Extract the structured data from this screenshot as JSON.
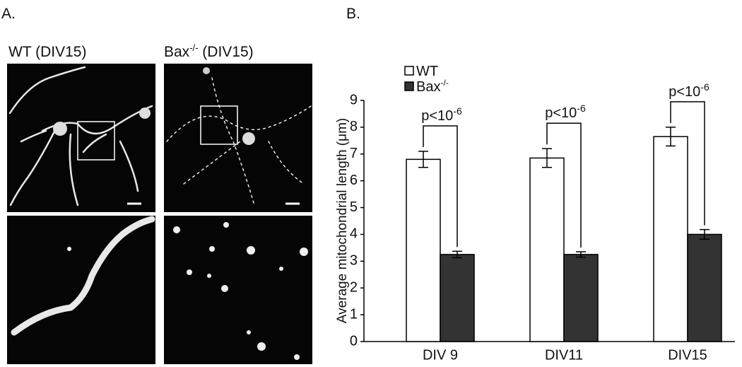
{
  "panels": [
    {
      "label": "A.",
      "images": [
        {
          "text": "WT (DIV15)"
        },
        {
          "text": "Bax",
          "superscript": "-/-",
          "suffix": " (DIV15)"
        }
      ]
    },
    {
      "label": "B."
    }
  ],
  "chart_data": {
    "type": "bar",
    "y_label": "Average mitochondrial length (μm)",
    "categories": [
      "DIV 9",
      "DIV11",
      "DIV15"
    ],
    "series": [
      {
        "name": "WT",
        "color": "#ffffff",
        "values": [
          6.8,
          6.85,
          7.65
        ],
        "errors": [
          0.3,
          0.35,
          0.35
        ]
      },
      {
        "name": "Bax",
        "name_superscript": "-/-",
        "color": "#333333",
        "values": [
          3.25,
          3.25,
          4.0
        ],
        "errors": [
          0.12,
          0.1,
          0.18
        ]
      }
    ],
    "annotations": [
      {
        "text": "p<10",
        "superscript": "-6"
      },
      {
        "text": "p<10",
        "superscript": "-6"
      },
      {
        "text": "p<10",
        "superscript": "-6"
      }
    ],
    "ylim": [
      0,
      9
    ],
    "yticks": [
      0,
      1,
      2,
      3,
      4,
      5,
      6,
      7,
      8,
      9
    ],
    "grid": false
  }
}
